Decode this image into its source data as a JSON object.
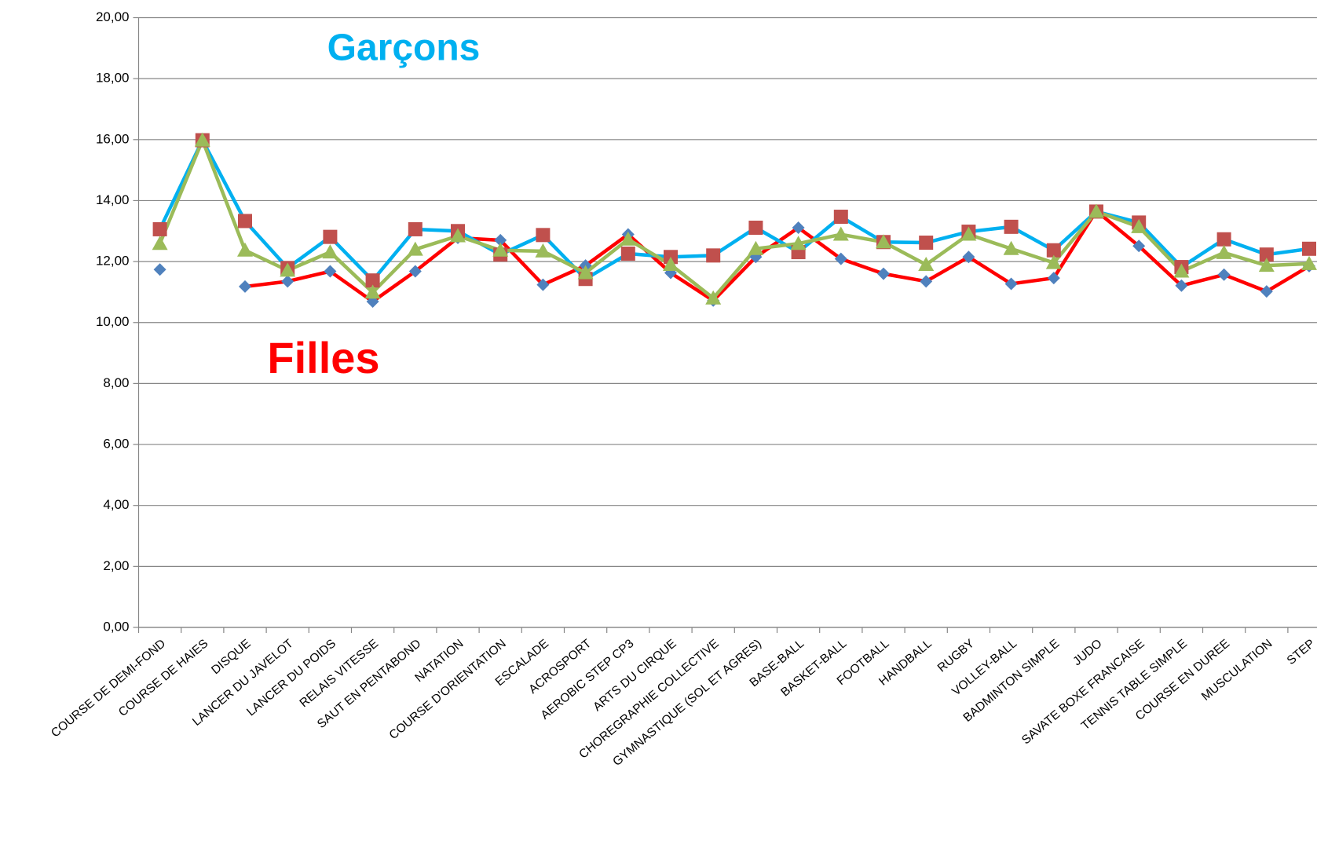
{
  "chart_data": {
    "type": "line",
    "annotations": [
      "Garçons",
      "Filles"
    ],
    "categories": [
      "COURSE DE DEMI-FOND",
      "COURSE DE HAIES",
      "DISQUE",
      "LANCER DU JAVELOT",
      "LANCER DU POIDS",
      "RELAIS VITESSE",
      "SAUT EN PENTABOND",
      "NATATION",
      "COURSE D'ORIENTATION",
      "ESCALADE",
      "ACROSPORT",
      "AEROBIC STEP CP3",
      "ARTS DU CIRQUE",
      "CHOREGRAPHIE COLLECTIVE",
      "GYMNASTIQUE (SOL ET AGRES)",
      "BASE-BALL",
      "BASKET-BALL",
      "FOOTBALL",
      "HANDBALL",
      "RUGBY",
      "VOLLEY-BALL",
      "BADMINTON SIMPLE",
      "JUDO",
      "SAVATE BOXE FRANCAISE",
      "TENNIS TABLE SIMPLE",
      "COURSE EN DUREE",
      "MUSCULATION",
      "STEP"
    ],
    "series": [
      {
        "color": "#4f81bd",
        "line_color": "#ff0000",
        "marker": "diamond",
        "values": [
          11.74,
          null,
          11.18,
          11.35,
          11.68,
          10.69,
          11.68,
          12.78,
          12.7,
          11.24,
          11.87,
          12.89,
          11.63,
          10.72,
          12.15,
          13.11,
          12.09,
          11.6,
          11.35,
          12.15,
          11.27,
          11.46,
          13.66,
          12.51,
          11.21,
          11.57,
          11.02,
          11.85
        ]
      },
      {
        "color": "#c0504d",
        "line_color": "#00b0f0",
        "marker": "square",
        "values": [
          13.06,
          15.98,
          13.33,
          11.79,
          12.81,
          11.38,
          13.06,
          13.0,
          12.23,
          12.87,
          11.43,
          12.26,
          12.15,
          12.2,
          13.11,
          12.31,
          13.47,
          12.64,
          12.62,
          12.98,
          13.14,
          12.37,
          13.64,
          13.28,
          11.82,
          12.73,
          12.23,
          12.42
        ]
      },
      {
        "color": "#9bbb59",
        "line_color": "#9bbb59",
        "marker": "triangle",
        "values": [
          12.59,
          15.98,
          12.37,
          11.71,
          12.31,
          10.99,
          12.4,
          12.84,
          12.37,
          12.34,
          11.63,
          12.73,
          11.9,
          10.8,
          12.42,
          12.59,
          12.89,
          12.64,
          11.9,
          12.89,
          12.42,
          11.96,
          13.64,
          13.14,
          11.68,
          12.29,
          11.87,
          11.93
        ]
      }
    ],
    "ylim": [
      0,
      20
    ],
    "yticks": [
      {
        "value": 0,
        "label": "0,00"
      },
      {
        "value": 2,
        "label": "2,00"
      },
      {
        "value": 4,
        "label": "4,00"
      },
      {
        "value": 6,
        "label": "6,00"
      },
      {
        "value": 8,
        "label": "8,00"
      },
      {
        "value": 10,
        "label": "10,00"
      },
      {
        "value": 12,
        "label": "12,00"
      },
      {
        "value": 14,
        "label": "14,00"
      },
      {
        "value": 16,
        "label": "16,00"
      },
      {
        "value": 18,
        "label": "18,00"
      },
      {
        "value": 20,
        "label": "20,00"
      }
    ],
    "grid": true
  }
}
